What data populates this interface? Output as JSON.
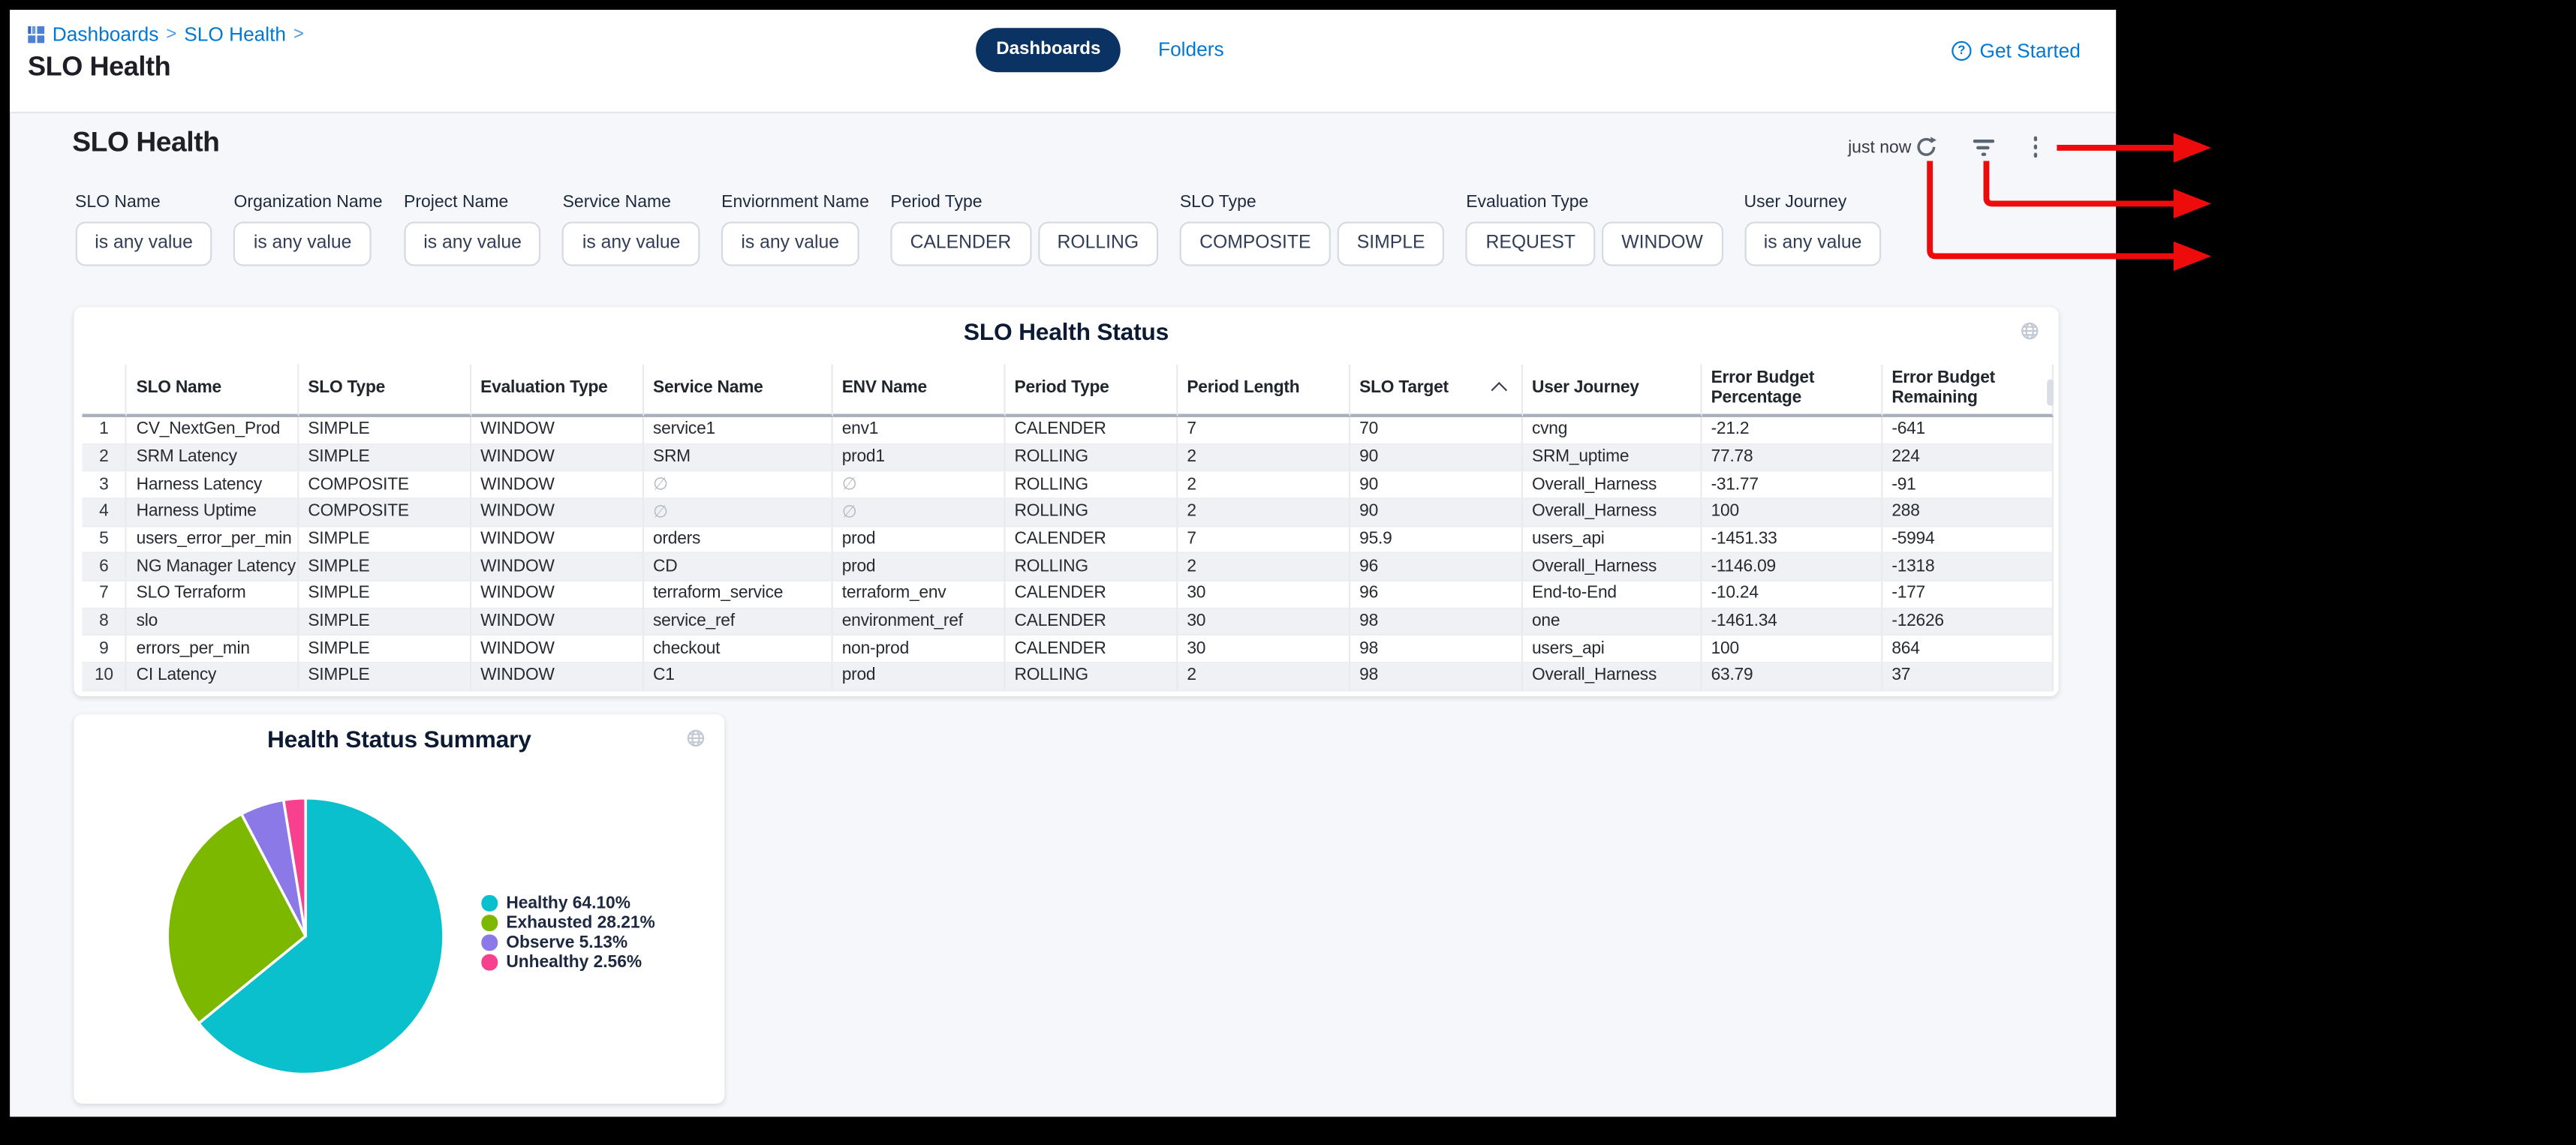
{
  "topbar": {
    "breadcrumb": {
      "items": [
        "Dashboards",
        "SLO Health"
      ],
      "separator": ">"
    },
    "title": "SLO Health",
    "tabs": [
      {
        "label": "Dashboards",
        "active": true
      },
      {
        "label": "Folders",
        "active": false
      }
    ],
    "help_label": "Get Started"
  },
  "main": {
    "heading": "SLO Health",
    "last_refresh": "just now"
  },
  "filters": [
    {
      "label": "SLO Name",
      "chips": [
        "is any value"
      ]
    },
    {
      "label": "Organization Name",
      "chips": [
        "is any value"
      ]
    },
    {
      "label": "Project Name",
      "chips": [
        "is any value"
      ]
    },
    {
      "label": "Service Name",
      "chips": [
        "is any value"
      ]
    },
    {
      "label": "Enviornment Name",
      "chips": [
        "is any value"
      ]
    },
    {
      "label": "Period Type",
      "chips": [
        "CALENDER",
        "ROLLING"
      ]
    },
    {
      "label": "SLO Type",
      "chips": [
        "COMPOSITE",
        "SIMPLE"
      ]
    },
    {
      "label": "Evaluation Type",
      "chips": [
        "REQUEST",
        "WINDOW"
      ]
    },
    {
      "label": "User Journey",
      "chips": [
        "is any value"
      ]
    }
  ],
  "chart_data": [
    {
      "type": "table",
      "title": "SLO Health Status",
      "columns": [
        "SLO Name",
        "SLO Type",
        "Evaluation Type",
        "Service Name",
        "ENV Name",
        "Period Type",
        "Period Length",
        "SLO Target",
        "User Journey",
        "Error Budget\nPercentage",
        "Error Budget\nRemaining"
      ],
      "sort": {
        "column": "SLO Target",
        "direction": "asc"
      },
      "rows": [
        {
          "n": 1,
          "cells": [
            "CV_NextGen_Prod",
            "SIMPLE",
            "WINDOW",
            "service1",
            "env1",
            "CALENDER",
            "7",
            "70",
            "cvng",
            "-21.2",
            "-641"
          ]
        },
        {
          "n": 2,
          "cells": [
            "SRM Latency",
            "SIMPLE",
            "WINDOW",
            "SRM",
            "prod1",
            "ROLLING",
            "2",
            "90",
            "SRM_uptime",
            "77.78",
            "224"
          ]
        },
        {
          "n": 3,
          "cells": [
            "Harness Latency",
            "COMPOSITE",
            "WINDOW",
            "∅",
            "∅",
            "ROLLING",
            "2",
            "90",
            "Overall_Harness",
            "-31.77",
            "-91"
          ]
        },
        {
          "n": 4,
          "cells": [
            "Harness Uptime",
            "COMPOSITE",
            "WINDOW",
            "∅",
            "∅",
            "ROLLING",
            "2",
            "90",
            "Overall_Harness",
            "100",
            "288"
          ]
        },
        {
          "n": 5,
          "cells": [
            "users_error_per_min",
            "SIMPLE",
            "WINDOW",
            "orders",
            "prod",
            "CALENDER",
            "7",
            "95.9",
            "users_api",
            "-1451.33",
            "-5994"
          ]
        },
        {
          "n": 6,
          "cells": [
            "NG Manager Latency",
            "SIMPLE",
            "WINDOW",
            "CD",
            "prod",
            "ROLLING",
            "2",
            "96",
            "Overall_Harness",
            "-1146.09",
            "-1318"
          ]
        },
        {
          "n": 7,
          "cells": [
            "SLO Terraform",
            "SIMPLE",
            "WINDOW",
            "terraform_service",
            "terraform_env",
            "CALENDER",
            "30",
            "96",
            "End-to-End",
            "-10.24",
            "-177"
          ]
        },
        {
          "n": 8,
          "cells": [
            "slo",
            "SIMPLE",
            "WINDOW",
            "service_ref",
            "environment_ref",
            "CALENDER",
            "30",
            "98",
            "one",
            "-1461.34",
            "-12626"
          ]
        },
        {
          "n": 9,
          "cells": [
            "errors_per_min",
            "SIMPLE",
            "WINDOW",
            "checkout",
            "non-prod",
            "CALENDER",
            "30",
            "98",
            "users_api",
            "100",
            "864"
          ]
        },
        {
          "n": 10,
          "cells": [
            "CI Latency",
            "SIMPLE",
            "WINDOW",
            "C1",
            "prod",
            "ROLLING",
            "2",
            "98",
            "Overall_Harness",
            "63.79",
            "37"
          ]
        }
      ]
    },
    {
      "type": "pie",
      "title": "Health Status Summary",
      "labels": [
        "Healthy",
        "Exhausted",
        "Observe",
        "Unhealthy"
      ],
      "values": [
        64.1,
        28.21,
        5.13,
        2.56
      ],
      "colors": [
        "#0ac0cc",
        "#7db800",
        "#8c79e8",
        "#f7418f"
      ],
      "legend": [
        "Healthy 64.10%",
        "Exhausted 28.21%",
        "Observe 5.13%",
        "Unhealthy 2.56%"
      ],
      "legend_position": "right"
    }
  ],
  "annotations": {
    "arrow_color": "#ee0b0b",
    "arrows": [
      {
        "target": "more-menu-button"
      },
      {
        "target": "filter-button"
      },
      {
        "target": "refresh-button"
      }
    ]
  },
  "colors": {
    "link_blue": "#0278d5",
    "pill_navy": "#0a3364",
    "content_bg": "#f6f7fa"
  }
}
